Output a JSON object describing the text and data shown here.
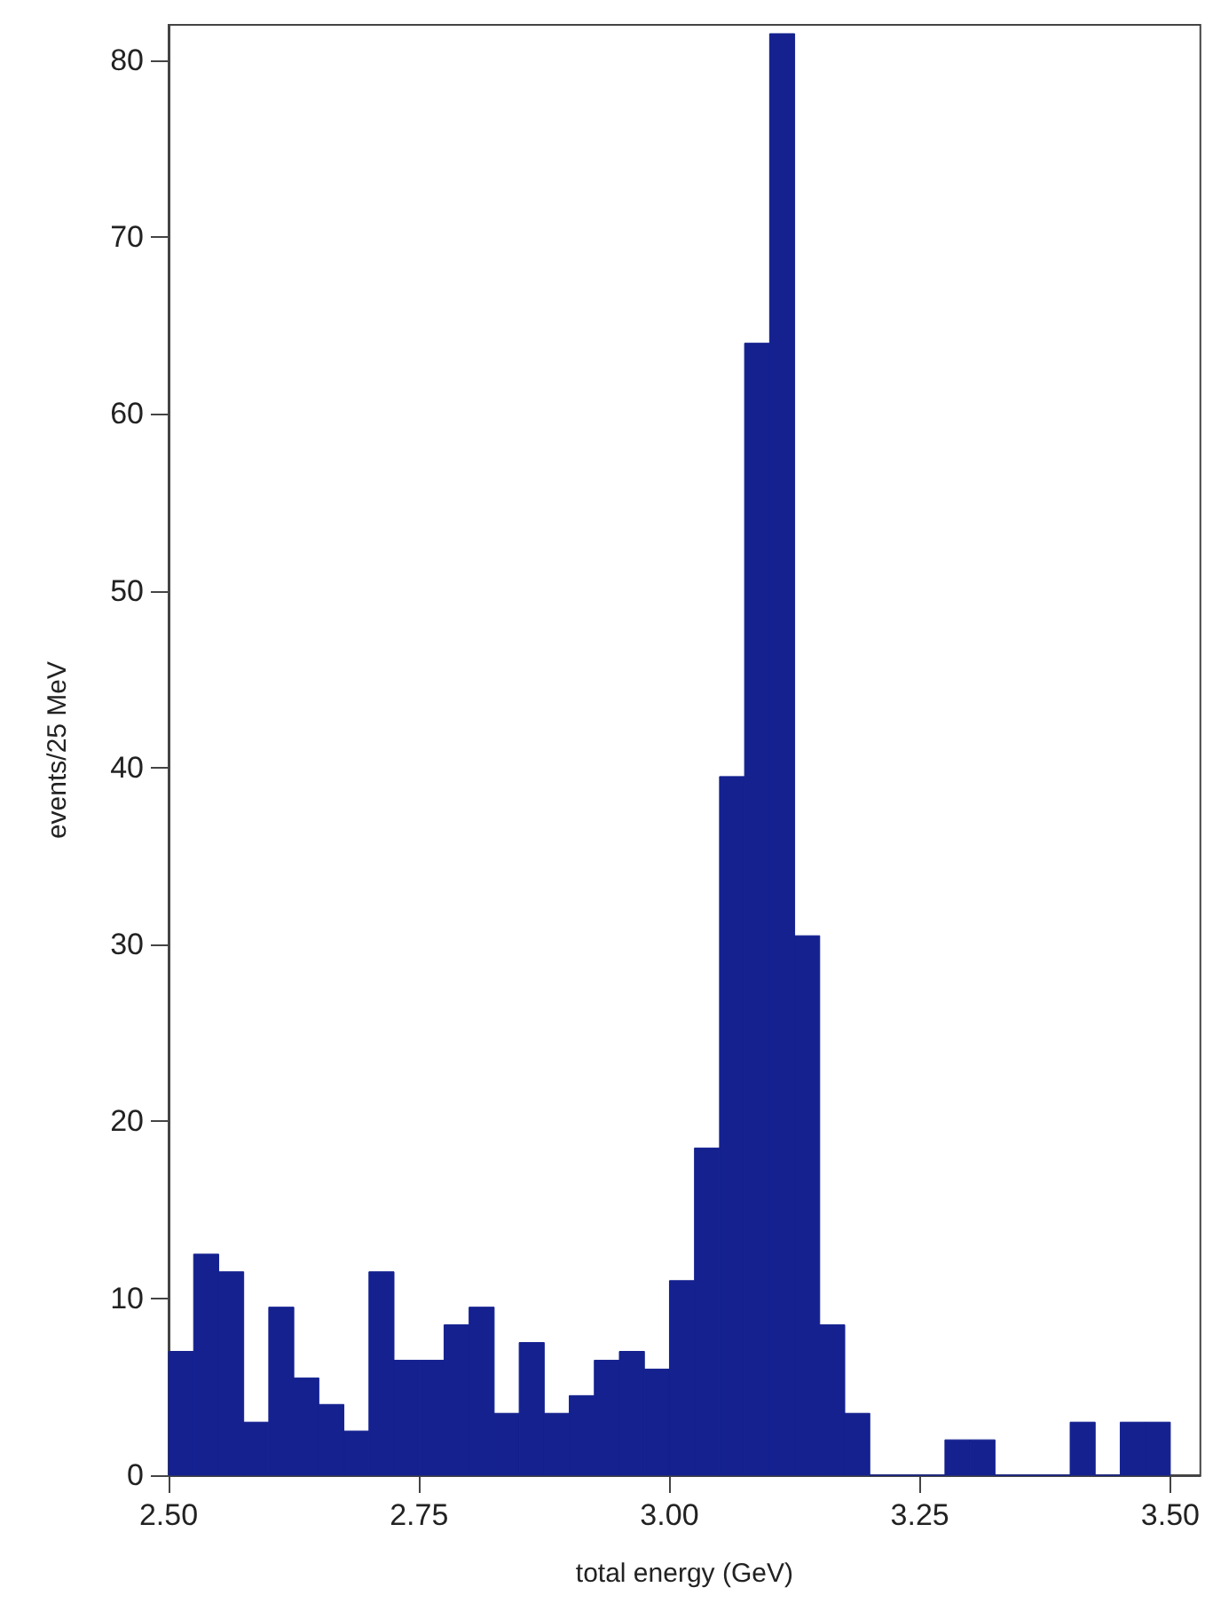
{
  "chart_data": {
    "type": "histogram",
    "xlabel": "total energy (GeV)",
    "ylabel": "events/25 MeV",
    "color": "#14218f",
    "bins": [
      2.5,
      2.525,
      2.55,
      2.575,
      2.6,
      2.625,
      2.65,
      2.675,
      2.7,
      2.725,
      2.75,
      2.775,
      2.8,
      2.825,
      2.85,
      2.875,
      2.9,
      2.925,
      2.95,
      2.975,
      3.0,
      3.025,
      3.05,
      3.075,
      3.1,
      3.125,
      3.15,
      3.175,
      3.2,
      3.225,
      3.25,
      3.275,
      3.3,
      3.325,
      3.35,
      3.375,
      3.4,
      3.425,
      3.45,
      3.475,
      3.5
    ],
    "values": [
      7,
      12.5,
      11.5,
      3,
      9.5,
      5.5,
      4,
      2.5,
      11.5,
      6.5,
      6.5,
      8.5,
      9.5,
      3.5,
      7.5,
      3.5,
      4.5,
      6.5,
      7,
      6,
      11,
      18.5,
      39.5,
      64,
      81.5,
      30.5,
      8.5,
      3.5,
      0,
      0,
      0,
      2,
      2,
      0,
      0,
      0,
      3,
      0,
      3,
      3
    ],
    "xlim": [
      2.5,
      3.53
    ],
    "xticks": [
      {
        "value": 2.5,
        "label": "2.50"
      },
      {
        "value": 2.75,
        "label": "2.75"
      },
      {
        "value": 3.0,
        "label": "3.00"
      },
      {
        "value": 3.25,
        "label": "3.25"
      },
      {
        "value": 3.5,
        "label": "3.50"
      }
    ],
    "ylim": [
      0,
      82
    ],
    "yticks": [
      0,
      10,
      20,
      30,
      40,
      50,
      60,
      70,
      80
    ],
    "grid": false
  }
}
